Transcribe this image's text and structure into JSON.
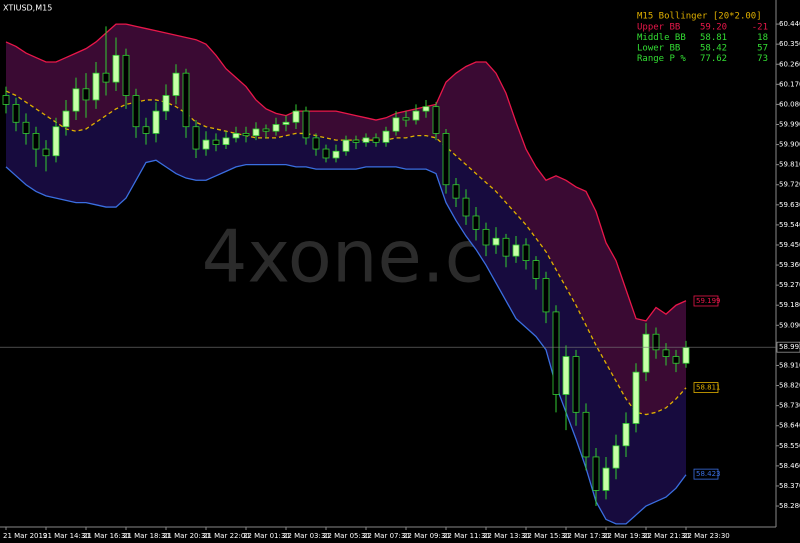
{
  "chart_data": {
    "type": "candlestick",
    "title": "XTIUSD,M15",
    "watermark": "4xone.com",
    "categories": [
      "21 Mar 2019",
      null,
      null,
      null,
      "21 Mar 14:30",
      null,
      null,
      null,
      "21 Mar 16:30",
      null,
      null,
      null,
      "21 Mar 18:30",
      null,
      null,
      null,
      "21 Mar 20:30",
      null,
      null,
      null,
      "21 Mar 22:00",
      null,
      null,
      null,
      "22 Mar 01:30",
      null,
      null,
      null,
      "22 Mar 03:30",
      null,
      null,
      null,
      "22 Mar 05:30",
      null,
      null,
      null,
      "22 Mar 07:30",
      null,
      null,
      null,
      "22 Mar 09:30",
      null,
      null,
      null,
      "22 Mar 11:30",
      null,
      null,
      null,
      "22 Mar 13:30",
      null,
      null,
      null,
      "22 Mar 15:30",
      null,
      null,
      null,
      "22 Mar 17:30",
      null,
      null,
      null,
      "22 Mar 19:30",
      null,
      null,
      null,
      "22 Mar 21:30",
      null,
      null,
      null,
      "22 Mar 23:30"
    ],
    "open": [
      60.12,
      60.08,
      60.0,
      59.95,
      59.88,
      59.85,
      59.98,
      60.05,
      60.15,
      60.1,
      60.22,
      60.18,
      60.3,
      60.12,
      59.98,
      59.95,
      60.05,
      60.12,
      60.22,
      59.98,
      59.88,
      59.92,
      59.9,
      59.93,
      59.95,
      59.94,
      59.97,
      59.96,
      59.99,
      60.0,
      60.05,
      59.93,
      59.88,
      59.84,
      59.87,
      59.92,
      59.91,
      59.93,
      59.91,
      59.96,
      60.02,
      60.01,
      60.05,
      60.07,
      59.95,
      59.72,
      59.66,
      59.58,
      59.52,
      59.45,
      59.48,
      59.4,
      59.45,
      59.38,
      59.3,
      59.15,
      58.78,
      58.95,
      58.7,
      58.5,
      58.35,
      58.45,
      58.55,
      58.65,
      58.88,
      59.05,
      58.98,
      58.95,
      58.92
    ],
    "high": [
      60.16,
      60.11,
      60.04,
      59.98,
      59.92,
      60.02,
      60.1,
      60.2,
      60.22,
      60.27,
      60.43,
      60.38,
      60.33,
      60.15,
      60.02,
      60.09,
      60.17,
      60.26,
      60.24,
      60.01,
      59.96,
      59.95,
      59.96,
      59.98,
      59.98,
      60.0,
      59.99,
      60.02,
      60.03,
      60.08,
      60.07,
      59.95,
      59.9,
      59.9,
      59.94,
      59.94,
      59.95,
      59.95,
      59.98,
      60.05,
      60.05,
      60.08,
      60.1,
      60.09,
      59.97,
      59.75,
      59.7,
      59.62,
      59.55,
      59.53,
      59.5,
      59.49,
      59.48,
      59.4,
      59.33,
      59.18,
      59.0,
      58.98,
      58.74,
      58.54,
      58.5,
      58.6,
      58.7,
      58.92,
      59.1,
      59.08,
      59.01,
      58.98,
      59.02
    ],
    "low": [
      60.04,
      59.96,
      59.9,
      59.8,
      59.78,
      59.82,
      59.94,
      60.01,
      60.02,
      60.06,
      60.12,
      60.14,
      60.06,
      59.93,
      59.9,
      59.91,
      60.01,
      60.08,
      59.93,
      59.84,
      59.85,
      59.87,
      59.88,
      59.91,
      59.91,
      59.92,
      59.93,
      59.94,
      59.96,
      59.97,
      59.9,
      59.85,
      59.82,
      59.82,
      59.85,
      59.88,
      59.89,
      59.89,
      59.89,
      59.94,
      59.98,
      59.99,
      60.02,
      59.92,
      59.68,
      59.62,
      59.54,
      59.47,
      59.4,
      59.41,
      59.35,
      59.37,
      59.34,
      59.25,
      59.1,
      58.7,
      58.62,
      58.64,
      58.44,
      58.28,
      58.31,
      58.4,
      58.5,
      58.61,
      58.84,
      58.94,
      58.91,
      58.88,
      58.9
    ],
    "close": [
      60.08,
      60.0,
      59.95,
      59.88,
      59.85,
      59.98,
      60.05,
      60.15,
      60.1,
      60.22,
      60.18,
      60.3,
      60.12,
      59.98,
      59.95,
      60.05,
      60.12,
      60.22,
      59.98,
      59.88,
      59.92,
      59.9,
      59.93,
      59.95,
      59.94,
      59.97,
      59.96,
      59.99,
      60.0,
      60.05,
      59.93,
      59.88,
      59.84,
      59.87,
      59.92,
      59.91,
      59.93,
      59.91,
      59.96,
      60.02,
      60.01,
      60.05,
      60.07,
      59.95,
      59.72,
      59.66,
      59.58,
      59.52,
      59.45,
      59.48,
      59.4,
      59.45,
      59.38,
      59.3,
      59.15,
      58.78,
      58.95,
      58.7,
      58.5,
      58.35,
      58.45,
      58.55,
      58.65,
      58.88,
      59.05,
      58.98,
      58.95,
      58.92,
      58.99
    ],
    "up_color": "#c8ffa8",
    "down_color": "#000000",
    "wick_color": "#33cc33",
    "series": [
      {
        "name": "Upper BB",
        "color": "#e8174a",
        "dashed": false,
        "last_label": {
          "value": 59.199,
          "label": "59.199"
        },
        "values": [
          60.36,
          60.34,
          60.31,
          60.29,
          60.27,
          60.27,
          60.29,
          60.31,
          60.33,
          60.36,
          60.4,
          60.44,
          60.44,
          60.43,
          60.42,
          60.41,
          60.4,
          60.39,
          60.38,
          60.37,
          60.35,
          60.3,
          60.24,
          60.2,
          60.16,
          60.1,
          60.06,
          60.04,
          60.03,
          60.05,
          60.05,
          60.05,
          60.05,
          60.05,
          60.04,
          60.03,
          60.02,
          60.01,
          60.02,
          60.04,
          60.05,
          60.06,
          60.07,
          60.08,
          60.18,
          60.22,
          60.25,
          60.27,
          60.27,
          60.22,
          60.13,
          60.0,
          59.88,
          59.8,
          59.74,
          59.76,
          59.74,
          59.71,
          59.69,
          59.6,
          59.46,
          59.38,
          59.25,
          59.12,
          59.11,
          59.17,
          59.14,
          59.18,
          59.2
        ]
      },
      {
        "name": "Middle BB",
        "color": "#e0b000",
        "dashed": true,
        "last_label": {
          "value": 58.811,
          "label": "58.811"
        },
        "values": [
          60.14,
          60.12,
          60.09,
          60.06,
          60.03,
          60.0,
          59.97,
          59.96,
          59.97,
          60.0,
          60.03,
          60.06,
          60.08,
          60.09,
          60.1,
          60.1,
          60.09,
          60.07,
          60.04,
          60.0,
          59.98,
          59.97,
          59.96,
          59.95,
          59.94,
          59.93,
          59.93,
          59.93,
          59.94,
          59.95,
          59.95,
          59.94,
          59.93,
          59.92,
          59.92,
          59.92,
          59.92,
          59.92,
          59.92,
          59.93,
          59.93,
          59.94,
          59.94,
          59.93,
          59.89,
          59.85,
          59.81,
          59.77,
          59.73,
          59.69,
          59.64,
          59.59,
          59.54,
          59.48,
          59.42,
          59.34,
          59.26,
          59.18,
          59.09,
          59.0,
          58.92,
          58.84,
          58.76,
          58.7,
          58.69,
          58.7,
          58.72,
          58.76,
          58.81
        ]
      },
      {
        "name": "Lower BB",
        "color": "#3a6ee0",
        "dashed": false,
        "last_label": {
          "value": 58.423,
          "label": "58.423"
        },
        "values": [
          59.8,
          59.76,
          59.72,
          59.69,
          59.67,
          59.66,
          59.65,
          59.64,
          59.64,
          59.63,
          59.62,
          59.62,
          59.66,
          59.74,
          59.82,
          59.83,
          59.8,
          59.77,
          59.75,
          59.74,
          59.74,
          59.76,
          59.78,
          59.8,
          59.81,
          59.81,
          59.81,
          59.81,
          59.81,
          59.8,
          59.8,
          59.79,
          59.79,
          59.79,
          59.79,
          59.79,
          59.8,
          59.8,
          59.8,
          59.8,
          59.79,
          59.79,
          59.79,
          59.77,
          59.64,
          59.56,
          59.49,
          59.43,
          59.36,
          59.28,
          59.2,
          59.12,
          59.08,
          59.04,
          58.98,
          58.82,
          58.7,
          58.58,
          58.45,
          58.3,
          58.22,
          58.2,
          58.2,
          58.24,
          58.28,
          58.3,
          58.32,
          58.36,
          58.42
        ]
      }
    ],
    "upper_fill": "#3a0a33",
    "lower_fill": "#170b3e",
    "last_price": {
      "value": 58.992,
      "label": "58.992"
    },
    "ylim": [
      58.186,
      60.548
    ],
    "yticks": [
      {
        "value": 60.44,
        "label": "60.440"
      },
      {
        "value": 60.35,
        "label": "60.350"
      },
      {
        "value": 60.26,
        "label": "60.260"
      },
      {
        "value": 60.17,
        "label": "60.170"
      },
      {
        "value": 60.08,
        "label": "60.080"
      },
      {
        "value": 59.99,
        "label": "59.990"
      },
      {
        "value": 59.9,
        "label": "59.900"
      },
      {
        "value": 59.81,
        "label": "59.810"
      },
      {
        "value": 59.72,
        "label": "59.720"
      },
      {
        "value": 59.63,
        "label": "59.630"
      },
      {
        "value": 59.54,
        "label": "59.540"
      },
      {
        "value": 59.45,
        "label": "59.450"
      },
      {
        "value": 59.36,
        "label": "59.360"
      },
      {
        "value": 59.27,
        "label": "59.270"
      },
      {
        "value": 59.18,
        "label": "59.180"
      },
      {
        "value": 59.09,
        "label": "59.090"
      },
      {
        "value": 58.91,
        "label": "58.910"
      },
      {
        "value": 58.82,
        "label": "58.820"
      },
      {
        "value": 58.73,
        "label": "58.730"
      },
      {
        "value": 58.64,
        "label": "58.640"
      },
      {
        "value": 58.55,
        "label": "58.550"
      },
      {
        "value": 58.46,
        "label": "58.460"
      },
      {
        "value": 58.37,
        "label": "58.370"
      },
      {
        "value": 58.28,
        "label": "58.280"
      }
    ],
    "grid": false,
    "indicator_panel": {
      "title": "M15 Bollinger [20*2.00]",
      "title_color": "#e0b000",
      "rows": [
        {
          "label": "Upper BB",
          "value": "59.20",
          "change": "-21",
          "color": "#e8174a"
        },
        {
          "label": "Middle BB",
          "value": "58.81",
          "change": "18",
          "color": "#33dd33"
        },
        {
          "label": "Lower BB",
          "value": "58.42",
          "change": "57",
          "color": "#33dd33"
        },
        {
          "label": "Range P %",
          "value": "77.62",
          "change": "73",
          "color": "#33dd33"
        }
      ]
    }
  }
}
